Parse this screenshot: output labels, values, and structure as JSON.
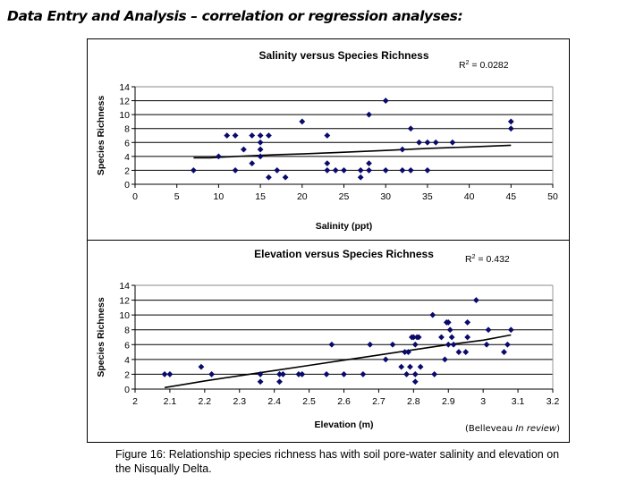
{
  "heading": "Data Entry and Analysis – correlation or regression analyses:",
  "credit": {
    "author": "(Belleveau ",
    "status": "In review",
    "close": ")"
  },
  "caption": "Figure 16: Relationship species richness has with soil pore-water salinity and elevation on the Nisqually Delta.",
  "colors": {
    "marker": "#0a0a6b",
    "grid": "#000000",
    "trend": "#000000"
  },
  "chart_data": [
    {
      "type": "scatter",
      "title": "Salinity versus Species Richness",
      "annotation": {
        "label": "R",
        "sup": "2",
        "text": " = 0.0282"
      },
      "xlabel": "Salinity (ppt)",
      "ylabel": "Species Richness",
      "xlim": [
        0,
        50
      ],
      "ylim": [
        0,
        14
      ],
      "xticks": [
        "0",
        "5",
        "10",
        "15",
        "20",
        "25",
        "30",
        "35",
        "40",
        "45",
        "50"
      ],
      "xtick_values": [
        0,
        5,
        10,
        15,
        20,
        25,
        30,
        35,
        40,
        45,
        50
      ],
      "yticks": [
        "0",
        "2",
        "4",
        "6",
        "8",
        "10",
        "12",
        "14"
      ],
      "ytick_values": [
        0,
        2,
        4,
        6,
        8,
        10,
        12,
        14
      ],
      "grid": "horizontal",
      "points": [
        [
          7,
          2
        ],
        [
          10,
          4
        ],
        [
          11,
          7
        ],
        [
          12,
          7
        ],
        [
          12,
          2
        ],
        [
          13,
          5
        ],
        [
          14,
          7
        ],
        [
          14,
          3
        ],
        [
          15,
          7
        ],
        [
          15,
          6
        ],
        [
          15,
          5
        ],
        [
          15,
          4
        ],
        [
          16,
          7
        ],
        [
          16,
          1
        ],
        [
          17,
          2
        ],
        [
          18,
          1
        ],
        [
          20,
          9
        ],
        [
          23,
          7
        ],
        [
          23,
          3
        ],
        [
          23,
          2
        ],
        [
          24,
          2
        ],
        [
          25,
          2
        ],
        [
          27,
          2
        ],
        [
          27,
          1
        ],
        [
          28,
          10
        ],
        [
          28,
          3
        ],
        [
          28,
          2
        ],
        [
          30,
          12
        ],
        [
          30,
          2
        ],
        [
          32,
          5
        ],
        [
          32,
          2
        ],
        [
          33,
          8
        ],
        [
          33,
          2
        ],
        [
          34,
          6
        ],
        [
          35,
          6
        ],
        [
          35,
          2
        ],
        [
          36,
          6
        ],
        [
          38,
          6
        ],
        [
          45,
          9
        ],
        [
          45,
          8
        ]
      ],
      "trendline": {
        "type": "polynomial",
        "points": [
          [
            7,
            3.8
          ],
          [
            9,
            3.8
          ],
          [
            12,
            4.0
          ],
          [
            17,
            4.25
          ],
          [
            20,
            4.35
          ],
          [
            25,
            4.6
          ],
          [
            30,
            4.85
          ],
          [
            35,
            5.15
          ],
          [
            40,
            5.35
          ],
          [
            45,
            5.6
          ]
        ]
      }
    },
    {
      "type": "scatter",
      "title": "Elevation versus Species Richness",
      "annotation": {
        "label": "R",
        "sup": "2",
        "text": " = 0.432"
      },
      "xlabel": "Elevation (m)",
      "ylabel": "Species Richness",
      "xlim": [
        2,
        3.2
      ],
      "ylim": [
        0,
        14
      ],
      "xticks": [
        "2",
        "2.1",
        "2.2",
        "2.3",
        "2.4",
        "2.5",
        "2.6",
        "2.7",
        "2.8",
        "2.9",
        "3",
        "3.1",
        "3.2"
      ],
      "xtick_values": [
        2,
        2.1,
        2.2,
        2.3,
        2.4,
        2.5,
        2.6,
        2.7,
        2.8,
        2.9,
        3,
        3.1,
        3.2
      ],
      "yticks": [
        "0",
        "2",
        "4",
        "6",
        "8",
        "10",
        "12",
        "14"
      ],
      "ytick_values": [
        0,
        2,
        4,
        6,
        8,
        10,
        12,
        14
      ],
      "grid": "horizontal",
      "points": [
        [
          2.085,
          2
        ],
        [
          2.1,
          2
        ],
        [
          2.19,
          3
        ],
        [
          2.22,
          2
        ],
        [
          2.36,
          2
        ],
        [
          2.36,
          1
        ],
        [
          2.415,
          2
        ],
        [
          2.415,
          1
        ],
        [
          2.425,
          2
        ],
        [
          2.47,
          2
        ],
        [
          2.48,
          2
        ],
        [
          2.55,
          2
        ],
        [
          2.565,
          6
        ],
        [
          2.6,
          2
        ],
        [
          2.655,
          2
        ],
        [
          2.675,
          6
        ],
        [
          2.72,
          4
        ],
        [
          2.74,
          6
        ],
        [
          2.765,
          3
        ],
        [
          2.775,
          5
        ],
        [
          2.78,
          2
        ],
        [
          2.785,
          5
        ],
        [
          2.79,
          3
        ],
        [
          2.795,
          7
        ],
        [
          2.8,
          7
        ],
        [
          2.805,
          6
        ],
        [
          2.805,
          2
        ],
        [
          2.805,
          1
        ],
        [
          2.81,
          7
        ],
        [
          2.815,
          7
        ],
        [
          2.82,
          3
        ],
        [
          2.855,
          10
        ],
        [
          2.86,
          2
        ],
        [
          2.88,
          7
        ],
        [
          2.89,
          4
        ],
        [
          2.895,
          9
        ],
        [
          2.9,
          9
        ],
        [
          2.9,
          6
        ],
        [
          2.905,
          8
        ],
        [
          2.91,
          7
        ],
        [
          2.915,
          6
        ],
        [
          2.93,
          5
        ],
        [
          2.95,
          5
        ],
        [
          2.955,
          9
        ],
        [
          2.955,
          7
        ],
        [
          2.98,
          12
        ],
        [
          3.01,
          6
        ],
        [
          3.015,
          8
        ],
        [
          3.06,
          5
        ],
        [
          3.07,
          6
        ],
        [
          3.08,
          8
        ]
      ],
      "trendline": {
        "type": "polynomial",
        "points": [
          [
            2.085,
            0.2
          ],
          [
            2.15,
            0.7
          ],
          [
            2.2,
            1.1
          ],
          [
            2.3,
            1.8
          ],
          [
            2.4,
            2.5
          ],
          [
            2.5,
            3.2
          ],
          [
            2.6,
            3.9
          ],
          [
            2.7,
            4.6
          ],
          [
            2.8,
            5.3
          ],
          [
            2.9,
            6.0
          ],
          [
            3.0,
            6.6
          ],
          [
            3.08,
            7.3
          ]
        ]
      }
    }
  ]
}
